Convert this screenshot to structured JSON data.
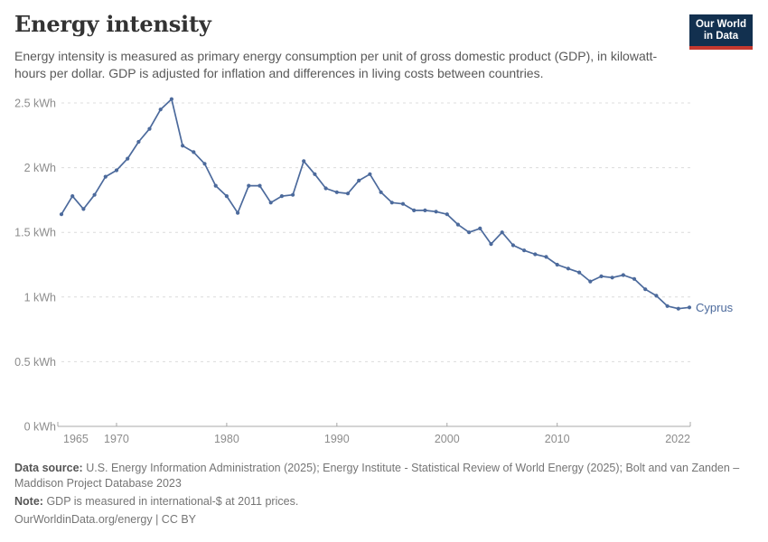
{
  "header": {
    "title": "Energy intensity",
    "subtitle": "Energy intensity is measured as primary energy consumption per unit of gross domestic product (GDP), in kilowatt-hours per dollar. GDP is adjusted for inflation and differences in living costs between countries.",
    "logo": {
      "line1": "Our World",
      "line2": "in Data"
    }
  },
  "chart_data": {
    "type": "line",
    "title": "Energy intensity",
    "unit": "kWh per dollar",
    "xlabel": "",
    "ylabel": "",
    "xlim": [
      1965,
      2022
    ],
    "ylim": [
      0,
      2.5
    ],
    "grid": "horizontal-dashed",
    "legend": "end-of-line-label",
    "line_color": "#4C6A9C",
    "xticks": [
      1965,
      1970,
      1980,
      1990,
      2000,
      2010,
      2022
    ],
    "yticks": [
      0,
      0.5,
      1,
      1.5,
      2,
      2.5
    ],
    "ytick_labels": [
      "0 kWh",
      "0.5 kWh",
      "1 kWh",
      "1.5 kWh",
      "2 kWh",
      "2.5 kWh"
    ],
    "series": [
      {
        "name": "Cyprus",
        "x": [
          1965,
          1966,
          1967,
          1968,
          1969,
          1970,
          1971,
          1972,
          1973,
          1974,
          1975,
          1976,
          1977,
          1978,
          1979,
          1980,
          1981,
          1982,
          1983,
          1984,
          1985,
          1986,
          1987,
          1988,
          1989,
          1990,
          1991,
          1992,
          1993,
          1994,
          1995,
          1996,
          1997,
          1998,
          1999,
          2000,
          2001,
          2002,
          2003,
          2004,
          2005,
          2006,
          2007,
          2008,
          2009,
          2010,
          2011,
          2012,
          2013,
          2014,
          2015,
          2016,
          2017,
          2018,
          2019,
          2020,
          2021,
          2022
        ],
        "values": [
          1.64,
          1.78,
          1.68,
          1.79,
          1.93,
          1.98,
          2.07,
          2.2,
          2.3,
          2.45,
          2.53,
          2.17,
          2.12,
          2.03,
          1.86,
          1.78,
          1.65,
          1.86,
          1.86,
          1.73,
          1.78,
          1.79,
          2.05,
          1.95,
          1.84,
          1.81,
          1.8,
          1.9,
          1.95,
          1.81,
          1.73,
          1.72,
          1.67,
          1.67,
          1.66,
          1.64,
          1.56,
          1.5,
          1.53,
          1.41,
          1.5,
          1.4,
          1.36,
          1.33,
          1.31,
          1.25,
          1.22,
          1.19,
          1.12,
          1.16,
          1.15,
          1.17,
          1.14,
          1.06,
          1.01,
          0.93,
          0.91,
          0.92
        ]
      }
    ]
  },
  "footer": {
    "data_source_label": "Data source:",
    "data_source_text": "U.S. Energy Information Administration (2025); Energy Institute - Statistical Review of World Energy (2025); Bolt and van Zanden – Maddison Project Database 2023",
    "note_label": "Note:",
    "note_text": "GDP is measured in international-$ at 2011 prices.",
    "license": "OurWorldinData.org/energy | CC BY"
  },
  "colors": {
    "line": "#4C6A9C",
    "logo_bg": "#12304F",
    "logo_underline": "#C5392F",
    "grid": "#DCDCDC",
    "axis": "#A8A8A8",
    "tick_label": "#8C8C8C",
    "title_text": "#333333",
    "subtitle_text": "#595959"
  }
}
